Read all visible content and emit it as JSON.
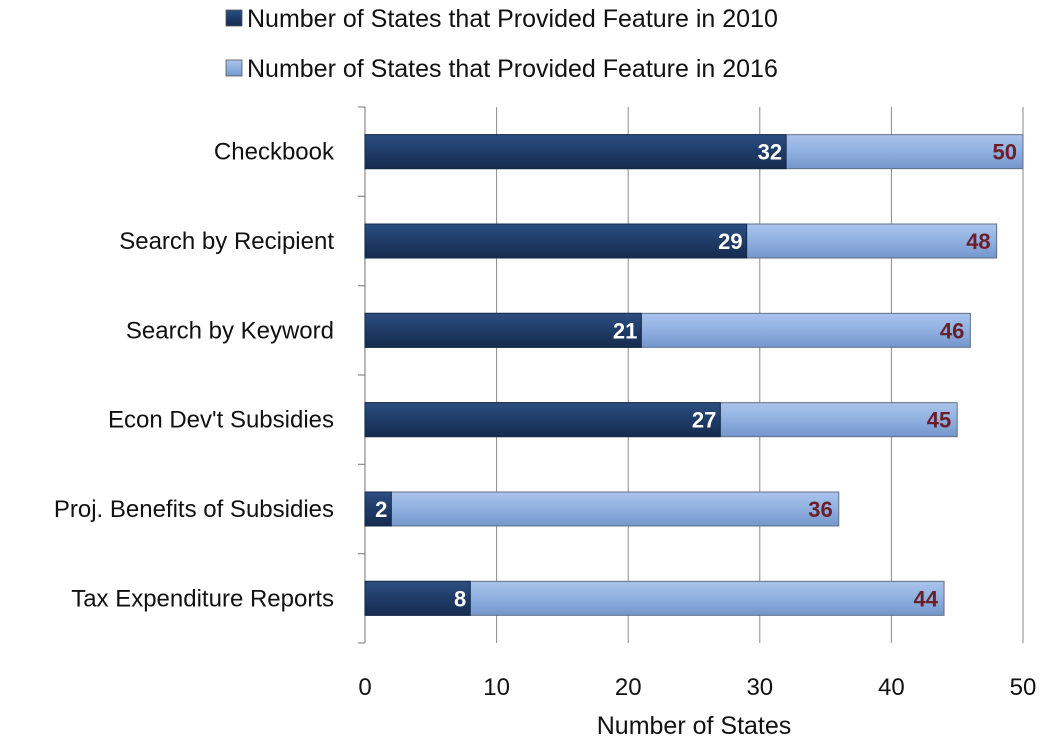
{
  "chart_data": {
    "type": "bar",
    "orientation": "horizontal",
    "layout": "overlapping",
    "categories": [
      "Checkbook",
      "Search by Recipient",
      "Search by Keyword",
      "Econ Dev't Subsidies",
      "Proj. Benefits of Subsidies",
      "Tax Expenditure Reports"
    ],
    "series": [
      {
        "name": "Number of States that Provided Feature in 2010",
        "values": [
          32,
          29,
          21,
          27,
          2,
          8
        ],
        "color": "#1f3b67"
      },
      {
        "name": "Number of States that Provided Feature in 2016",
        "values": [
          50,
          48,
          46,
          45,
          36,
          44
        ],
        "color": "#8fb0e0"
      }
    ],
    "title": "",
    "xlabel": "Number of States",
    "ylabel": "",
    "xlim": [
      0,
      50
    ],
    "xticks": [
      "0",
      "10",
      "20",
      "30",
      "40",
      "50"
    ],
    "grid": "vertical",
    "legend_position": "top",
    "label_colors": {
      "series_2010": "#ffffff",
      "series_2016": "#6b1f2a"
    }
  }
}
